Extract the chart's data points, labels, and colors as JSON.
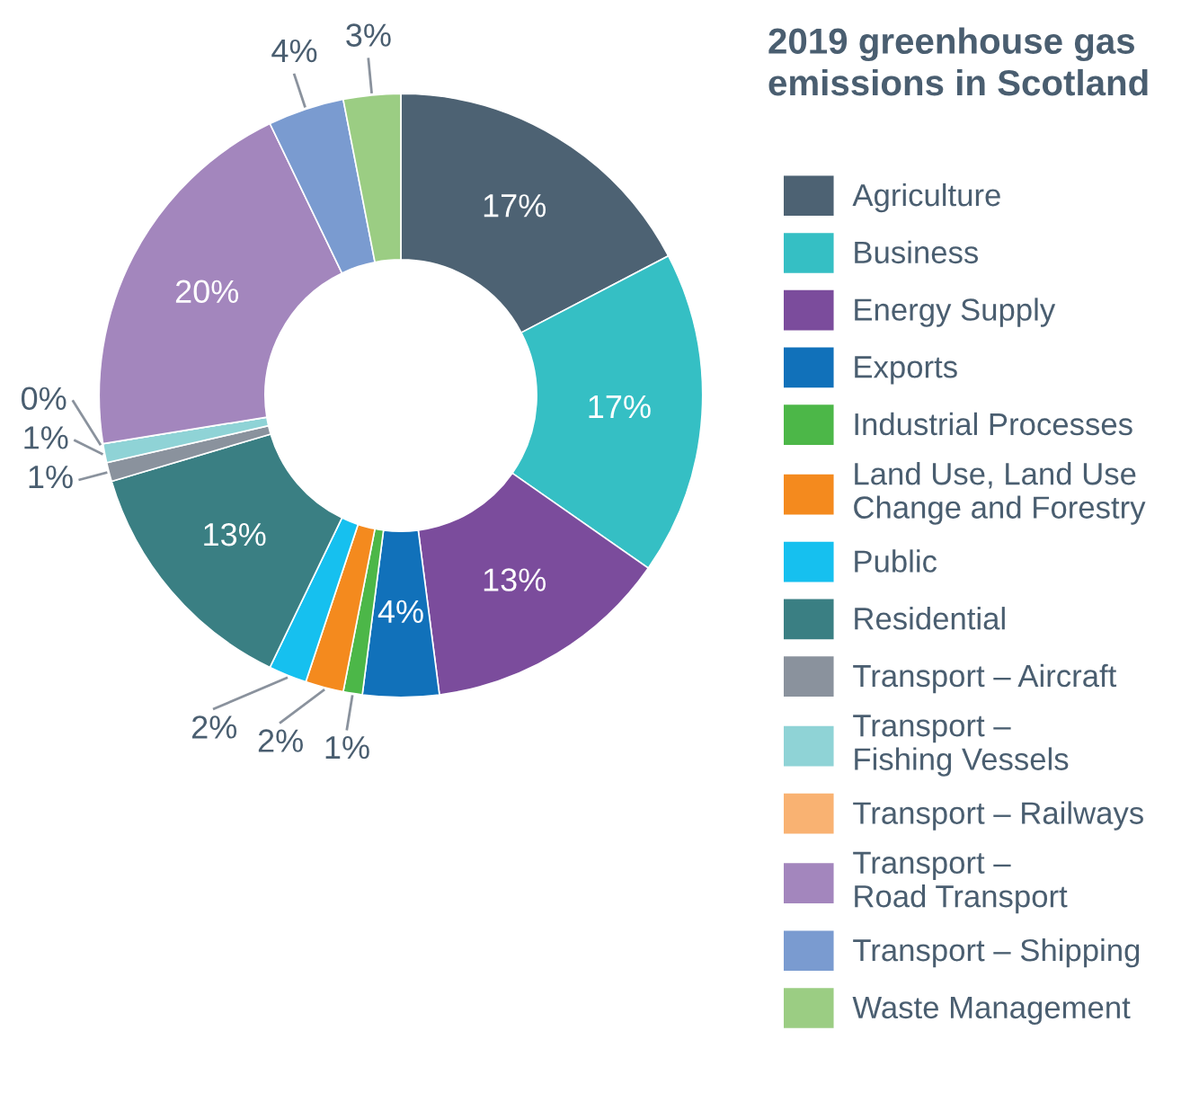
{
  "chart_data": {
    "type": "donut",
    "title": "2019 greenhouse gas\nemissions in Scotland",
    "categories": [
      "Agriculture",
      "Business",
      "Energy Supply",
      "Exports",
      "Industrial Processes",
      "Land Use, Land Use\nChange and Forestry",
      "Public",
      "Residential",
      "Transport – Aircraft",
      "Transport –\nFishing Vessels",
      "Transport – Railways",
      "Transport –\nRoad Transport",
      "Transport – Shipping",
      "Waste Management"
    ],
    "values": [
      17,
      17,
      13,
      4,
      1,
      2,
      2,
      13,
      1,
      1,
      0,
      20,
      4,
      3
    ],
    "value_labels": [
      "17%",
      "17%",
      "13%",
      "4%",
      "1%",
      "2%",
      "2%",
      "13%",
      "1%",
      "1%",
      "0%",
      "20%",
      "4%",
      "3%"
    ],
    "colors": [
      "#4d6273",
      "#35bfc4",
      "#7b4c9c",
      "#1171ba",
      "#4cb748",
      "#f48a1e",
      "#16c0ef",
      "#3a7f83",
      "#8a929d",
      "#8fd3d6",
      "#f9b272",
      "#a386bd",
      "#7a9bd0",
      "#9bcd83"
    ],
    "legend": "right"
  }
}
